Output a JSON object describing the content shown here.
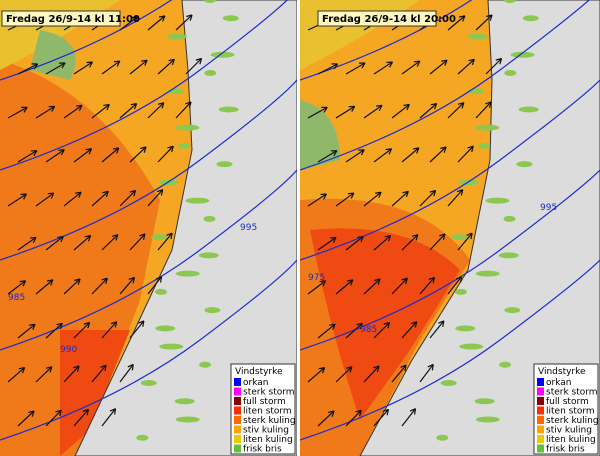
{
  "panels": [
    {
      "title": "Fredag 26/9-14 kl 11:00",
      "isobars": [
        "985",
        "990",
        "995"
      ],
      "legend": {
        "title": "Vindstyrke",
        "items": [
          {
            "label": "orkan",
            "color": "#0000ff"
          },
          {
            "label": "sterk storm",
            "color": "#ff00ff"
          },
          {
            "label": "full storm",
            "color": "#8b0000"
          },
          {
            "label": "liten storm",
            "color": "#ff2a00"
          },
          {
            "label": "sterk kuling",
            "color": "#ff6a00"
          },
          {
            "label": "stiv kuling",
            "color": "#ffa500"
          },
          {
            "label": "liten kuling",
            "color": "#f0c800"
          },
          {
            "label": "frisk bris",
            "color": "#66c040"
          }
        ]
      }
    },
    {
      "title": "Fredag 26/9-14 kl 20:00",
      "isobars": [
        "975",
        "985",
        "995"
      ],
      "legend": {
        "title": "Vindstyrke",
        "items": [
          {
            "label": "orkan",
            "color": "#0000ff"
          },
          {
            "label": "sterk storm",
            "color": "#ff00ff"
          },
          {
            "label": "full storm",
            "color": "#8b0000"
          },
          {
            "label": "liten storm",
            "color": "#ff2a00"
          },
          {
            "label": "sterk kuling",
            "color": "#ff6a00"
          },
          {
            "label": "stiv kuling",
            "color": "#ffa500"
          },
          {
            "label": "liten kuling",
            "color": "#f0c800"
          },
          {
            "label": "frisk bris",
            "color": "#66c040"
          }
        ]
      }
    }
  ]
}
